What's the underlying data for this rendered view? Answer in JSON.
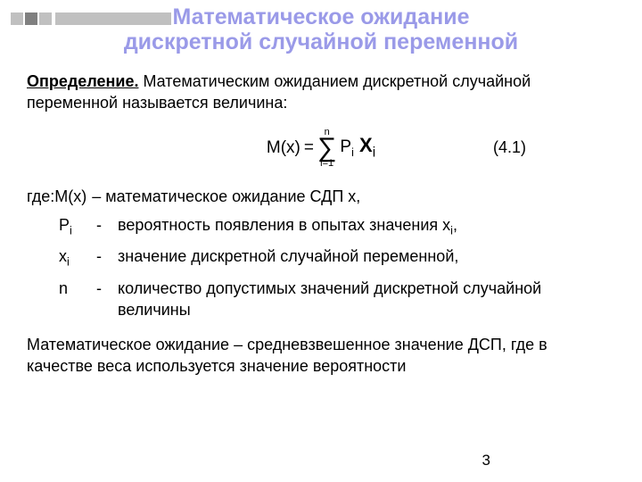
{
  "decoration": {
    "square_light": "#c0c0c0",
    "square_dark": "#808080",
    "bar_color": "#c0c0c0"
  },
  "title": {
    "line1": "Математическое ожидание",
    "line2": "дискретной случайной переменной",
    "color": "#9a9ae8",
    "fontsize": 25
  },
  "body_fontsize": 18,
  "definition_label": "Определение.",
  "definition_text": " Математическим ожиданием дискретной случайной переменной называется величина:",
  "formula": {
    "lhs": "M(x)",
    "eq": "=",
    "sum_top": "n",
    "sum_bottom": "i=1",
    "term1": "P",
    "term1_sub": "i",
    "term2": "X",
    "term2_sub": "i",
    "number": "(4.1)",
    "fontsize": 19
  },
  "where_label": "где: ",
  "defs": [
    {
      "sym_html": "M(x)",
      "text": "– математическое ожидание СДП х,"
    },
    {
      "sym_html": "P<sub>i</sub>",
      "dash": "-",
      "text": "вероятность появления в опытах значения х<sub>i</sub>,"
    },
    {
      "sym_html": "x<sub>i</sub>",
      "dash": "-",
      "text": "значение дискретной случайной переменной,"
    },
    {
      "sym_html": "n",
      "dash": "-",
      "text": "количество допустимых значений дискретной случайной величины"
    }
  ],
  "footer_para": "Математическое ожидание – средневзвешенное значение ДСП, где в качестве веса используется значение вероятности",
  "page_number": "3"
}
